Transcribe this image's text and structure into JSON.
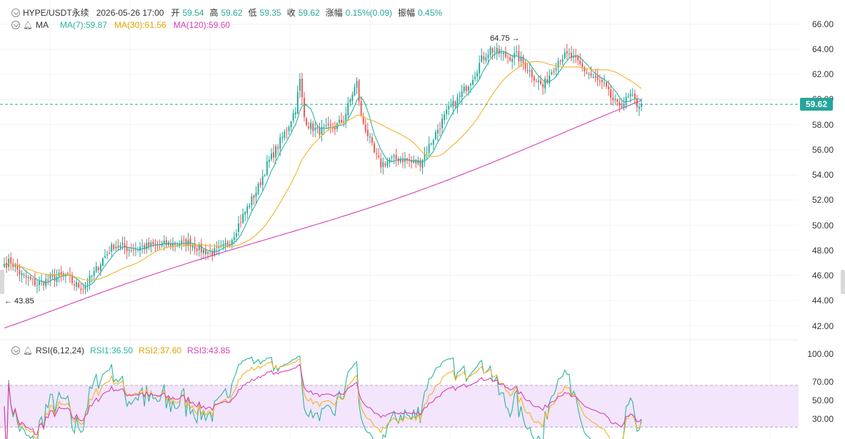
{
  "header": {
    "symbol": "HYPE/USDT永续",
    "datetime": "2026-05-26 17:00",
    "open_label": "开",
    "open_value": "59.54",
    "high_label": "高",
    "high_value": "59.62",
    "low_label": "低",
    "low_value": "59.35",
    "close_label": "收",
    "close_value": "59.62",
    "change_label": "涨幅",
    "change_value": "0.15%(0.09)",
    "amplitude_label": "振幅",
    "amplitude_value": "0.45%"
  },
  "ma_legend": {
    "name": "MA",
    "ma7": "MA(7):59.87",
    "ma30": "MA(30):61.56",
    "ma120": "MA(120):59.60"
  },
  "rsi_legend": {
    "name": "RSI(6,12,24)",
    "rsi1": "RSI1:36.50",
    "rsi2": "RSI2:37.60",
    "rsi3": "RSI3:43.85"
  },
  "price_axis": [
    "66.00",
    "64.00",
    "62.00",
    "60.00",
    "58.00",
    "56.00",
    "54.00",
    "52.00",
    "50.00",
    "48.00",
    "46.00",
    "44.00",
    "42.00"
  ],
  "rsi_axis": [
    "100.00",
    "70.00",
    "50.00",
    "30.00"
  ],
  "current_price": "59.62",
  "annotations": {
    "high": "64.75 →",
    "low": "← 43.85"
  },
  "colors": {
    "up": "#26a69a",
    "down": "#ef5350",
    "ma7": "#2bb5a0",
    "ma30": "#f0b429",
    "ma120": "#d63fb5",
    "rsi1": "#2bb5a0",
    "rsi2": "#f0b429",
    "rsi3": "#d63fb5",
    "rsi_band": "#f3e5fb"
  },
  "chart_data": [
    {
      "type": "candlestick",
      "ylim": [
        42,
        66
      ],
      "last_price": 59.62,
      "high_marker": 64.75,
      "low_marker": 43.85,
      "close_anchors": [
        [
          0,
          46.9
        ],
        [
          3,
          47.1
        ],
        [
          8,
          46.0
        ],
        [
          15,
          45.3
        ],
        [
          22,
          45.8
        ],
        [
          28,
          46.0
        ],
        [
          32,
          45.3
        ],
        [
          36,
          45.0
        ],
        [
          40,
          45.9
        ],
        [
          45,
          47.3
        ],
        [
          50,
          48.4
        ],
        [
          57,
          48.1
        ],
        [
          65,
          48.3
        ],
        [
          75,
          48.5
        ],
        [
          85,
          48.6
        ],
        [
          90,
          48.0
        ],
        [
          95,
          47.8
        ],
        [
          100,
          48.2
        ],
        [
          104,
          49.0
        ],
        [
          108,
          50.4
        ],
        [
          112,
          51.7
        ],
        [
          116,
          53.0
        ],
        [
          120,
          54.8
        ],
        [
          124,
          56.0
        ],
        [
          127,
          57.0
        ],
        [
          130,
          58.0
        ],
        [
          133,
          59.3
        ],
        [
          135,
          61.5
        ],
        [
          137,
          58.6
        ],
        [
          139,
          58.0
        ],
        [
          143,
          57.5
        ],
        [
          147,
          57.6
        ],
        [
          151,
          57.8
        ],
        [
          155,
          58.4
        ],
        [
          159,
          60.5
        ],
        [
          161,
          61.3
        ],
        [
          163,
          58.6
        ],
        [
          166,
          57.2
        ],
        [
          169,
          55.7
        ],
        [
          172,
          54.8
        ],
        [
          176,
          55.2
        ],
        [
          181,
          55.3
        ],
        [
          186,
          55.0
        ],
        [
          190,
          55.0
        ],
        [
          193,
          56.0
        ],
        [
          197,
          57.3
        ],
        [
          200,
          58.3
        ],
        [
          203,
          59.2
        ],
        [
          207,
          60.0
        ],
        [
          211,
          61.0
        ],
        [
          215,
          62.1
        ],
        [
          218,
          63.2
        ],
        [
          222,
          64.0
        ],
        [
          226,
          63.7
        ],
        [
          230,
          63.4
        ],
        [
          234,
          63.5
        ],
        [
          238,
          62.7
        ],
        [
          242,
          61.8
        ],
        [
          246,
          61.0
        ],
        [
          250,
          62.3
        ],
        [
          254,
          63.4
        ],
        [
          258,
          63.5
        ],
        [
          262,
          62.9
        ],
        [
          266,
          62.2
        ],
        [
          270,
          61.6
        ],
        [
          274,
          61.1
        ],
        [
          277,
          60.2
        ],
        [
          280,
          59.5
        ],
        [
          283,
          59.8
        ],
        [
          286,
          60.3
        ],
        [
          289,
          59.6
        ],
        [
          291,
          59.62
        ]
      ],
      "series": [
        {
          "name": "MA(7)",
          "last": 59.87
        },
        {
          "name": "MA(30)",
          "last": 61.56
        },
        {
          "name": "MA(120)",
          "last": 59.6
        }
      ]
    },
    {
      "type": "line",
      "ylim": [
        20,
        100
      ],
      "band": [
        30,
        70
      ],
      "series": [
        {
          "name": "RSI1",
          "last": 36.5
        },
        {
          "name": "RSI2",
          "last": 37.6
        },
        {
          "name": "RSI3",
          "last": 43.85
        }
      ]
    }
  ]
}
